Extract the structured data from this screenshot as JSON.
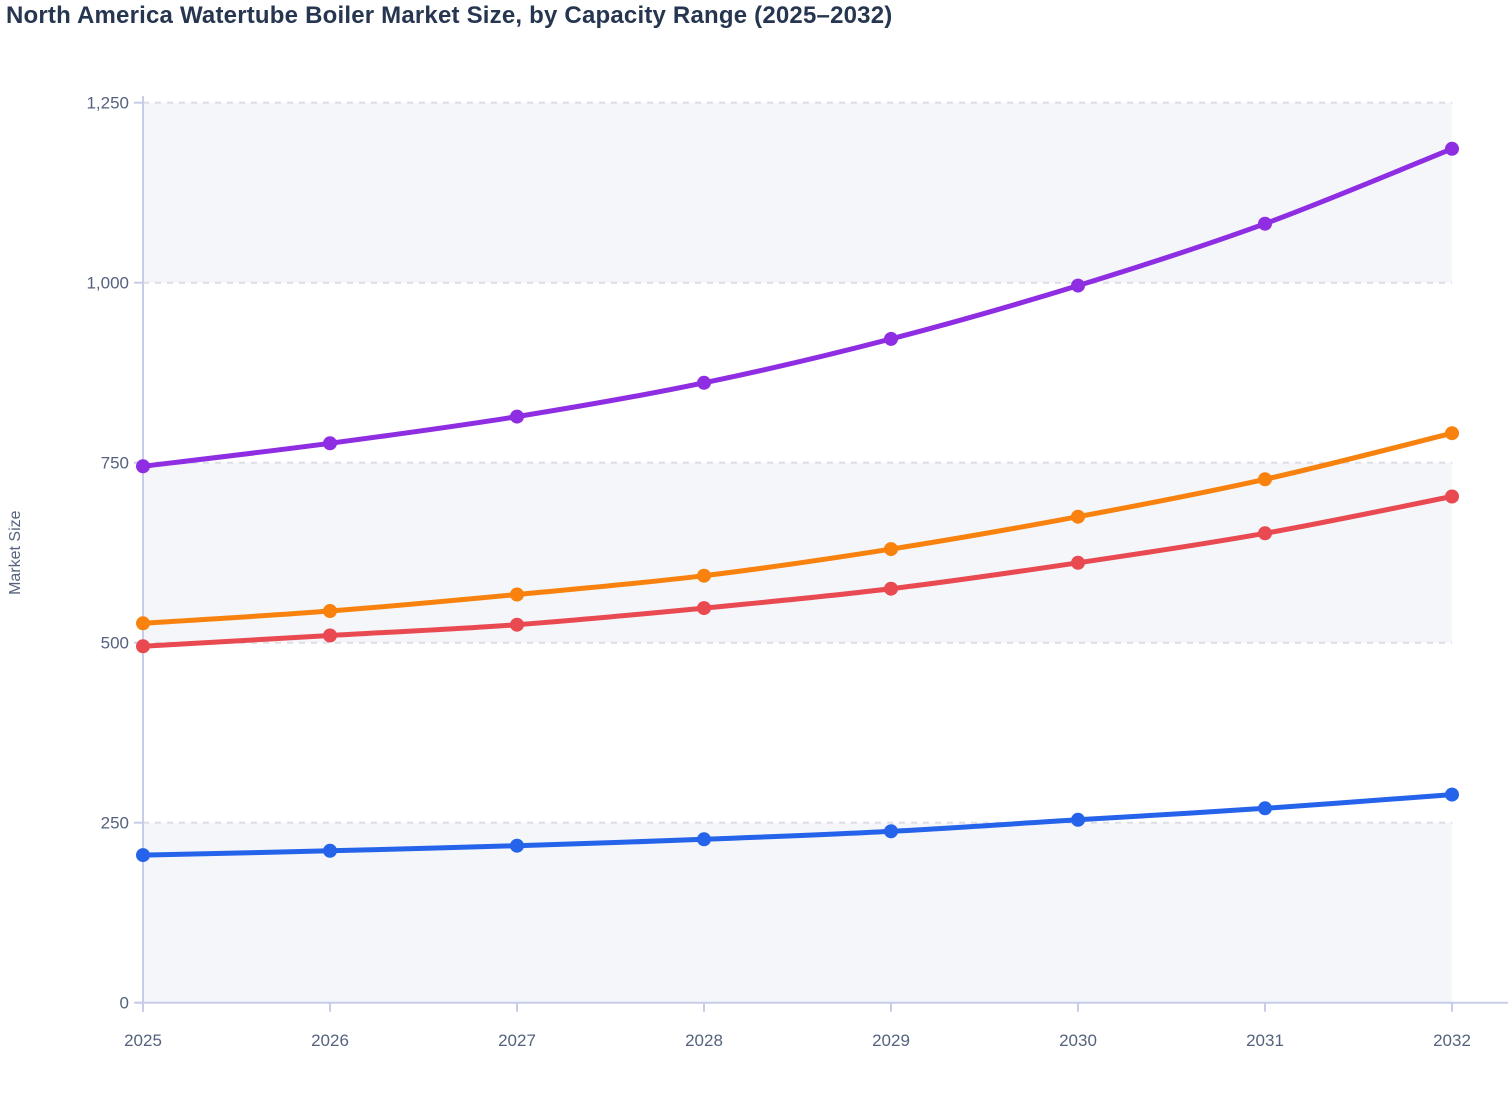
{
  "styles": {
    "title_color": "#273650",
    "tick_label_color": "#55627D",
    "axis_line_color": "#C7CDE9",
    "gridline_color": "#DBDEE4",
    "band_fill": "#F4F6FA",
    "background": "#FFFFFF"
  },
  "chart_data": {
    "type": "line",
    "title": "North America Watertube Boiler Market Size, by Capacity Range (2025–2032)",
    "x": [
      2025,
      2026,
      2027,
      2028,
      2029,
      2030,
      2031,
      2032
    ],
    "xtick_labels": [
      "2025",
      "2026",
      "2027",
      "2028",
      "2029",
      "2030",
      "2031",
      "2032"
    ],
    "series": [
      {
        "name": "series-purple",
        "color": "#8E2DE2",
        "values": [
          745,
          777,
          814,
          861,
          922,
          996,
          1082,
          1186
        ]
      },
      {
        "name": "series-orange",
        "color": "#F8820D",
        "values": [
          527,
          544,
          567,
          593,
          630,
          675,
          727,
          791
        ]
      },
      {
        "name": "series-red",
        "color": "#E94950",
        "values": [
          495,
          510,
          525,
          548,
          575,
          611,
          652,
          703
        ]
      },
      {
        "name": "series-blue",
        "color": "#2663EB",
        "values": [
          205,
          211,
          218,
          227,
          238,
          254,
          270,
          289
        ]
      }
    ],
    "xlabel": "",
    "ylabel": "Market Size",
    "ylim": [
      0,
      1250
    ],
    "yticks": [
      0,
      250,
      500,
      750,
      1000,
      1250
    ],
    "ytick_labels": [
      "0",
      "250",
      "500",
      "750",
      "1,000",
      "1,250"
    ],
    "grid": "horizontal-dashed",
    "band_rows": "alternating light fill on 0-250, 500-750, 1000-1250",
    "legend": "none",
    "markers": "filled circles at each data point"
  }
}
